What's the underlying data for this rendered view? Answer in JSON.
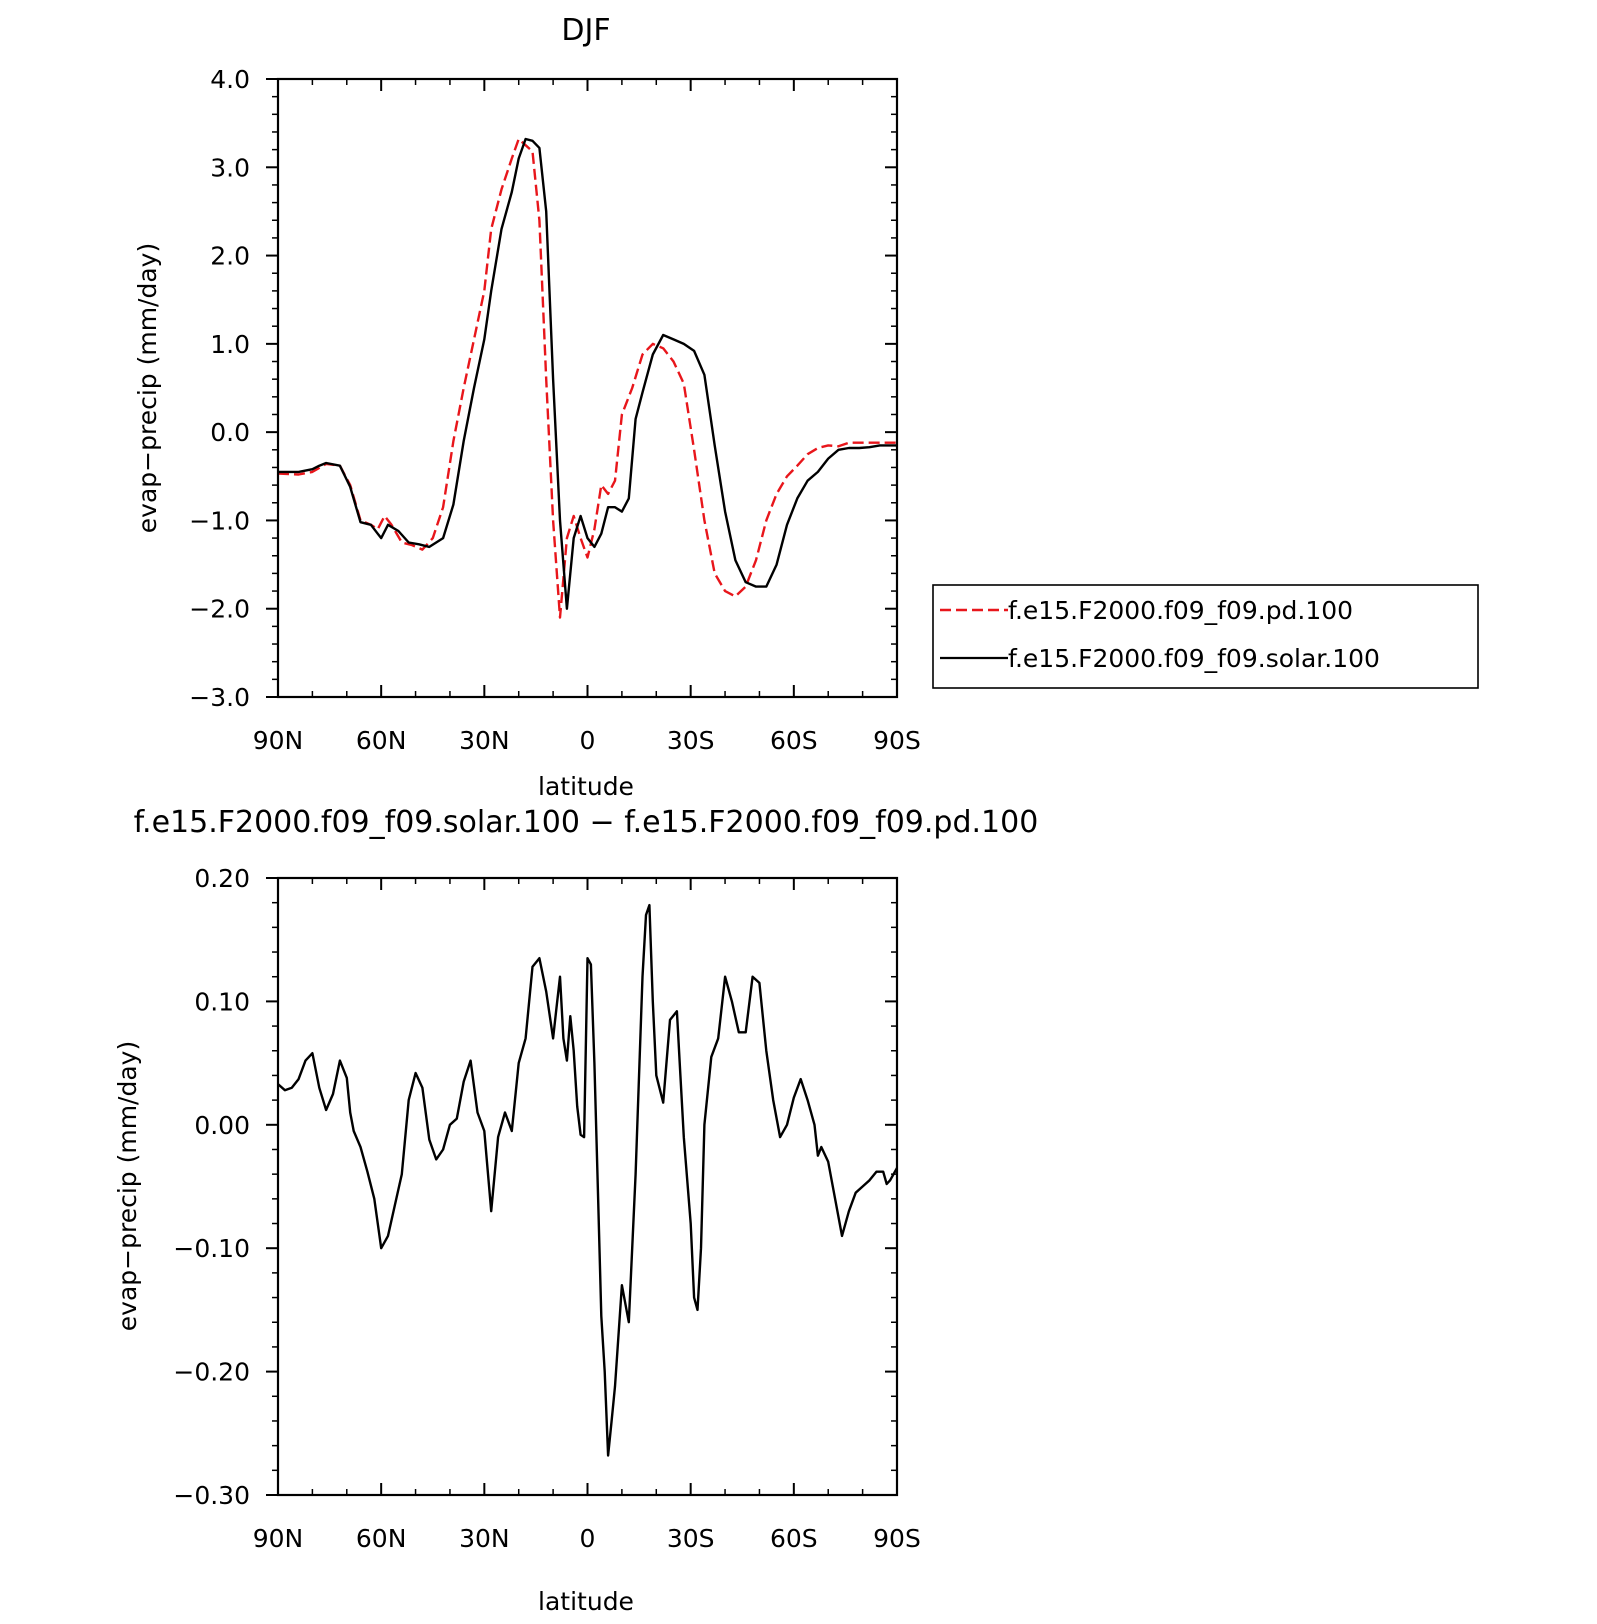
{
  "chart_data": [
    {
      "type": "line",
      "title": "DJF",
      "xlabel": "latitude",
      "ylabel": "evap−precip (mm/day)",
      "xlim": [
        90,
        -90
      ],
      "ylim": [
        -3.0,
        4.0
      ],
      "x_tick_values": [
        90,
        60,
        30,
        0,
        -30,
        -60,
        -90
      ],
      "x_tick_labels": [
        "90N",
        "60N",
        "30N",
        "0",
        "30S",
        "60S",
        "90S"
      ],
      "y_tick_values": [
        4,
        3,
        2,
        1,
        0,
        -1,
        -2,
        -3
      ],
      "y_tick_labels": [
        "4.0",
        "3.0",
        "2.0",
        "1.0",
        "0.0",
        "−1.0",
        "−2.0",
        "−3.0"
      ],
      "legend_position": "right",
      "series": [
        {
          "name": "f.e15.F2000.f09_f09.pd.100",
          "color": "#e8161b",
          "dash": "dashed",
          "x": [
            90,
            84,
            80,
            76,
            72,
            69,
            66,
            63,
            61,
            59,
            57,
            54,
            51,
            48,
            45,
            42,
            39,
            36,
            33,
            30,
            28,
            25,
            22,
            20,
            18,
            16,
            14,
            12,
            10,
            8,
            6,
            4,
            2,
            0,
            -2,
            -4,
            -6,
            -8,
            -10,
            -13,
            -16,
            -19,
            -22,
            -25,
            -28,
            -31,
            -34,
            -37,
            -40,
            -43,
            -46,
            -49,
            -52,
            -55,
            -58,
            -61,
            -64,
            -67,
            -70,
            -73,
            -76,
            -79,
            -82,
            -85,
            -88,
            -90
          ],
          "values": [
            -0.47,
            -0.48,
            -0.45,
            -0.36,
            -0.38,
            -0.6,
            -1.0,
            -1.05,
            -1.1,
            -0.95,
            -1.05,
            -1.25,
            -1.28,
            -1.33,
            -1.2,
            -0.85,
            -0.1,
            0.5,
            1.05,
            1.6,
            2.3,
            2.75,
            3.1,
            3.32,
            3.25,
            3.18,
            2.4,
            0.6,
            -1.0,
            -2.1,
            -1.2,
            -0.95,
            -1.2,
            -1.42,
            -1.1,
            -0.6,
            -0.7,
            -0.55,
            0.2,
            0.5,
            0.88,
            1.0,
            0.95,
            0.8,
            0.55,
            -0.2,
            -1.0,
            -1.6,
            -1.8,
            -1.86,
            -1.75,
            -1.45,
            -1.0,
            -0.7,
            -0.5,
            -0.38,
            -0.25,
            -0.18,
            -0.15,
            -0.16,
            -0.12,
            -0.12,
            -0.12,
            -0.12,
            -0.12,
            -0.12
          ]
        },
        {
          "name": "f.e15.F2000.f09_f09.solar.100",
          "color": "#000000",
          "dash": "solid",
          "x": [
            90,
            84,
            80,
            78,
            76,
            72,
            69,
            66,
            63,
            61,
            60,
            58,
            55,
            52,
            49,
            46,
            42,
            39,
            36,
            33,
            30,
            28,
            25,
            22,
            20,
            18,
            16,
            14,
            12,
            10,
            8,
            6,
            4,
            2,
            0,
            -2,
            -4,
            -6,
            -8,
            -10,
            -12,
            -14,
            -16,
            -19,
            -22,
            -25,
            -28,
            -31,
            -34,
            -37,
            -40,
            -43,
            -46,
            -49,
            -52,
            -55,
            -58,
            -61,
            -64,
            -67,
            -70,
            -73,
            -76,
            -79,
            -82,
            -85,
            -88,
            -90
          ],
          "values": [
            -0.45,
            -0.45,
            -0.42,
            -0.38,
            -0.35,
            -0.38,
            -0.62,
            -1.02,
            -1.05,
            -1.15,
            -1.2,
            -1.05,
            -1.12,
            -1.25,
            -1.27,
            -1.3,
            -1.2,
            -0.82,
            -0.1,
            0.5,
            1.05,
            1.6,
            2.3,
            2.72,
            3.1,
            3.32,
            3.3,
            3.22,
            2.5,
            0.6,
            -1.0,
            -2.0,
            -1.2,
            -0.95,
            -1.2,
            -1.3,
            -1.15,
            -0.85,
            -0.85,
            -0.9,
            -0.75,
            0.15,
            0.45,
            0.88,
            1.1,
            1.05,
            1.0,
            0.92,
            0.65,
            -0.15,
            -0.9,
            -1.45,
            -1.7,
            -1.75,
            -1.75,
            -1.5,
            -1.05,
            -0.75,
            -0.55,
            -0.45,
            -0.3,
            -0.2,
            -0.18,
            -0.18,
            -0.17,
            -0.15,
            -0.15,
            -0.15
          ]
        }
      ]
    },
    {
      "type": "line",
      "title": "f.e15.F2000.f09_f09.solar.100 − f.e15.F2000.f09_f09.pd.100",
      "xlabel": "latitude",
      "ylabel": "evap−precip (mm/day)",
      "xlim": [
        90,
        -90
      ],
      "ylim": [
        -0.3,
        0.2
      ],
      "x_tick_values": [
        90,
        60,
        30,
        0,
        -30,
        -60,
        -90
      ],
      "x_tick_labels": [
        "90N",
        "60N",
        "30N",
        "0",
        "30S",
        "60S",
        "90S"
      ],
      "y_tick_values": [
        0.2,
        0.1,
        0.0,
        -0.1,
        -0.2,
        -0.3
      ],
      "y_tick_labels": [
        "0.20",
        "0.10",
        "0.00",
        "−0.10",
        "−0.20",
        "−0.30"
      ],
      "series": [
        {
          "color": "#000000",
          "dash": "solid",
          "x": [
            90,
            88,
            86,
            84,
            82,
            80,
            78,
            76,
            74,
            72,
            70,
            69,
            68,
            66,
            64,
            62,
            60,
            58,
            56,
            54,
            52,
            50,
            48,
            46,
            44,
            42,
            40,
            38,
            36,
            34,
            32,
            30,
            28,
            26,
            24,
            22,
            20,
            18,
            16,
            14,
            12,
            10,
            9,
            8,
            7,
            6,
            5,
            4,
            3,
            2,
            1,
            0,
            -1,
            -2,
            -3,
            -4,
            -5,
            -6,
            -7,
            -8,
            -10,
            -12,
            -13,
            -14,
            -16,
            -17,
            -18,
            -19,
            -20,
            -22,
            -24,
            -26,
            -27,
            -28,
            -30,
            -31,
            -32,
            -33,
            -34,
            -36,
            -38,
            -40,
            -42,
            -44,
            -46,
            -48,
            -50,
            -52,
            -54,
            -56,
            -58,
            -60,
            -62,
            -64,
            -66,
            -67,
            -68,
            -70,
            -72,
            -74,
            -76,
            -78,
            -80,
            -82,
            -84,
            -86,
            -87,
            -88,
            -90
          ],
          "values": [
            0.033,
            0.028,
            0.03,
            0.037,
            0.052,
            0.058,
            0.03,
            0.012,
            0.025,
            0.052,
            0.038,
            0.01,
            -0.005,
            -0.018,
            -0.038,
            -0.06,
            -0.1,
            -0.09,
            -0.065,
            -0.04,
            0.02,
            0.042,
            0.03,
            -0.012,
            -0.028,
            -0.02,
            0.0,
            0.005,
            0.035,
            0.052,
            0.01,
            -0.005,
            -0.07,
            -0.01,
            0.01,
            -0.005,
            0.05,
            0.07,
            0.128,
            0.135,
            0.108,
            0.07,
            0.095,
            0.12,
            0.07,
            0.052,
            0.088,
            0.06,
            0.015,
            -0.008,
            -0.01,
            0.135,
            0.13,
            0.05,
            -0.05,
            -0.155,
            -0.2,
            -0.268,
            -0.24,
            -0.212,
            -0.13,
            -0.16,
            -0.1,
            -0.04,
            0.12,
            0.17,
            0.178,
            0.1,
            0.04,
            0.018,
            0.085,
            0.092,
            0.04,
            -0.01,
            -0.08,
            -0.14,
            -0.15,
            -0.1,
            0.0,
            0.055,
            0.07,
            0.12,
            0.1,
            0.075,
            0.075,
            0.12,
            0.115,
            0.06,
            0.02,
            -0.01,
            0.0,
            0.022,
            0.037,
            0.02,
            0.0,
            -0.025,
            -0.018,
            -0.03,
            -0.06,
            -0.09,
            -0.07,
            -0.055,
            -0.05,
            -0.045,
            -0.038,
            -0.038,
            -0.048,
            -0.045,
            -0.035
          ]
        }
      ]
    }
  ]
}
